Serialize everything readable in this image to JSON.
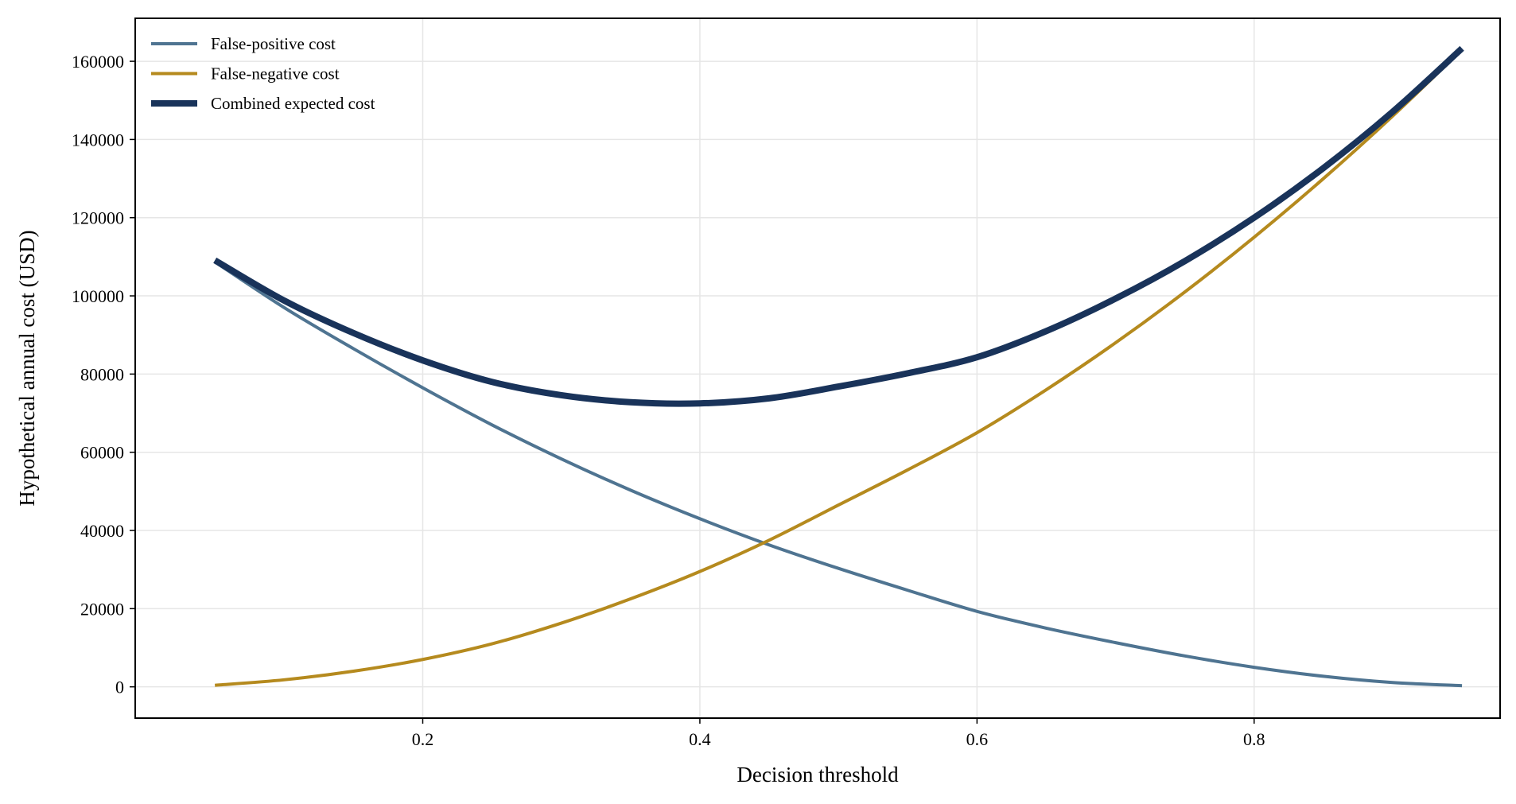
{
  "chart_data": {
    "type": "line",
    "title": "",
    "xlabel": "Decision threshold",
    "ylabel": "Hypothetical annual cost (USD)",
    "xlim": [
      -0.0075,
      0.9775
    ],
    "ylim": [
      -8000,
      171000
    ],
    "xticks": [
      0.2,
      0.4,
      0.6,
      0.8
    ],
    "xtick_labels": [
      "0.2",
      "0.4",
      "0.6",
      "0.8"
    ],
    "yticks": [
      0,
      20000,
      40000,
      60000,
      80000,
      100000,
      120000,
      140000,
      160000
    ],
    "ytick_labels": [
      "0",
      "20000",
      "40000",
      "60000",
      "80000",
      "100000",
      "120000",
      "140000",
      "160000"
    ],
    "grid": true,
    "legend_position": "top-left",
    "x": [
      0.05,
      0.1,
      0.15,
      0.2,
      0.25,
      0.3,
      0.35,
      0.4,
      0.45,
      0.5,
      0.55,
      0.6,
      0.65,
      0.7,
      0.75,
      0.8,
      0.85,
      0.9,
      0.95
    ],
    "series": [
      {
        "name": "False-positive cost",
        "color": "#4f7491",
        "values": [
          108700,
          97000,
          86500,
          76500,
          67000,
          58300,
          50300,
          43000,
          36300,
          30300,
          24700,
          19300,
          15000,
          11300,
          7900,
          5000,
          2700,
          1100,
          300
        ]
      },
      {
        "name": "False-negative cost",
        "color": "#b58a1e",
        "values": [
          400,
          1800,
          4000,
          7000,
          11000,
          16300,
          22500,
          29500,
          37500,
          46500,
          55500,
          65000,
          76000,
          88000,
          101000,
          115000,
          130000,
          146000,
          163000
        ]
      },
      {
        "name": "Combined expected cost",
        "color": "#19335a",
        "values": [
          109100,
          98800,
          90500,
          83500,
          78000,
          74600,
          72800,
          72500,
          73800,
          76800,
          80200,
          84300,
          91000,
          99300,
          108900,
          120000,
          132700,
          147100,
          163300
        ]
      }
    ]
  }
}
